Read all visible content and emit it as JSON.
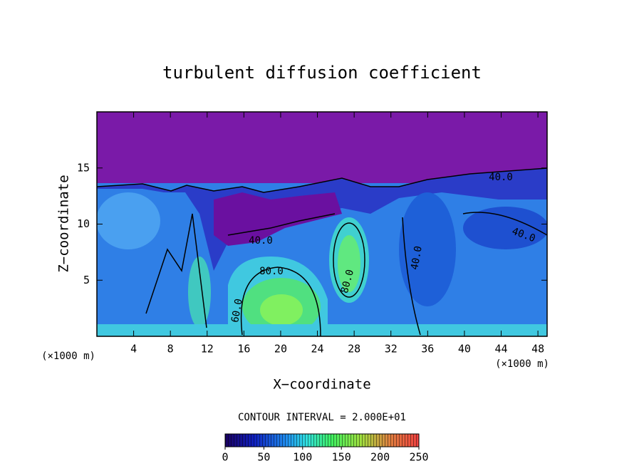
{
  "chart_data": {
    "type": "contour",
    "title": "turbulent diffusion coefficient",
    "x_label": "X−coordinate",
    "y_label": "Z−coordinate",
    "x_unit": "(×1000 m)",
    "xlim": [
      0,
      49
    ],
    "xticks": [
      4,
      8,
      12,
      16,
      20,
      24,
      28,
      32,
      36,
      40,
      44,
      48
    ],
    "ylim": [
      0,
      20
    ],
    "yticks": [
      5,
      10,
      15
    ],
    "contour_interval": "CONTOUR INTERVAL = 2.000E+01",
    "contour_labels": [
      "40.0",
      "40.0",
      "40.0",
      "80.0",
      "80.0",
      "40.0",
      "60.0"
    ],
    "colorbar_lim": [
      0,
      250
    ],
    "colorbar_ticks": [
      0,
      50,
      100,
      150,
      200,
      250
    ]
  }
}
